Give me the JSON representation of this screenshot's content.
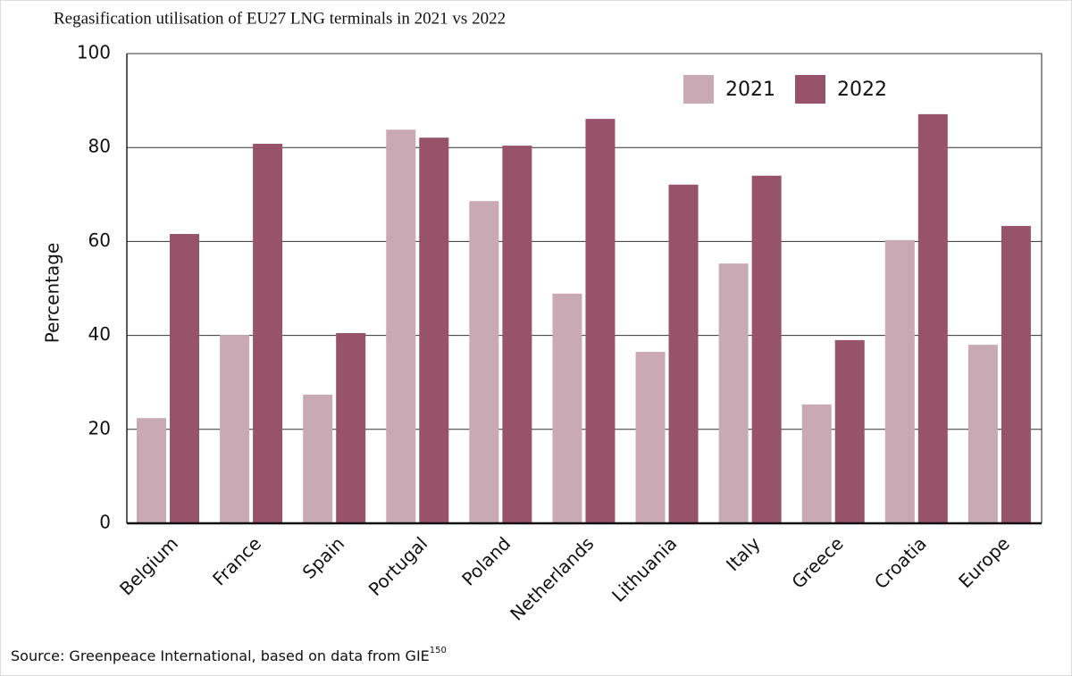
{
  "chart_data": {
    "type": "bar",
    "title": "Regasification utilisation of EU27 LNG terminals in 2021 vs 2022",
    "y_label": "Percentage",
    "categories": [
      "Belgium",
      "France",
      "Spain",
      "Portugal",
      "Poland",
      "Netherlands",
      "Lithuania",
      "Italy",
      "Greece",
      "Croatia",
      "Europe"
    ],
    "series": [
      {
        "name": "2021",
        "color": "#c9a9b3",
        "values": [
          22.4,
          40.1,
          27.4,
          83.8,
          68.6,
          48.9,
          36.5,
          55.3,
          25.3,
          60.3,
          38.0
        ]
      },
      {
        "name": "2022",
        "color": "#96536a",
        "values": [
          61.6,
          80.8,
          40.5,
          82.1,
          80.4,
          86.1,
          72.1,
          74.0,
          39.0,
          87.1,
          63.3
        ]
      }
    ],
    "ylim": [
      0,
      100
    ],
    "yticks": [
      0,
      20,
      40,
      60,
      80,
      100
    ],
    "grid": true,
    "legend": "top-right",
    "source": "Source: Greenpeace International, based on data from GIE",
    "source_superscript": "150"
  }
}
